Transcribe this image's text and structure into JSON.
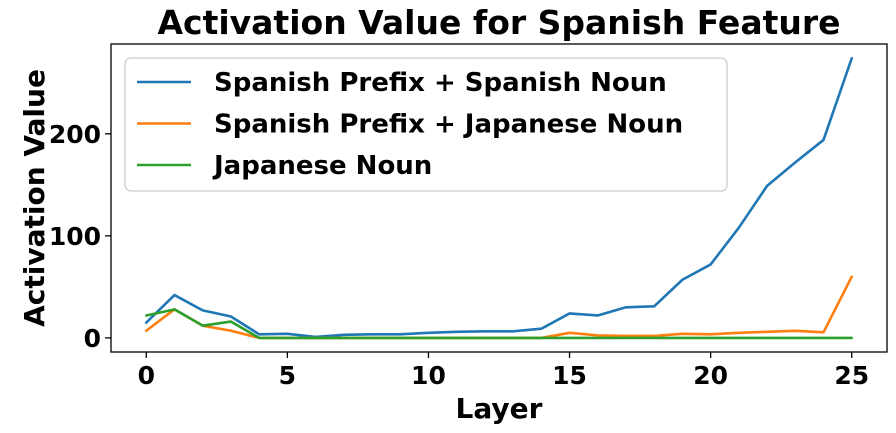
{
  "chart_data": {
    "type": "line",
    "title": "Activation Value for Spanish Feature",
    "xlabel": "Layer",
    "ylabel": "Activation Value",
    "xlim": [
      -1.25,
      26.25
    ],
    "ylim": [
      -13.8,
      288
    ],
    "xticks": [
      0,
      5,
      10,
      15,
      20,
      25
    ],
    "yticks": [
      0,
      100,
      200
    ],
    "grid": false,
    "legend_position": "upper-left",
    "x": [
      0,
      1,
      2,
      3,
      4,
      5,
      6,
      7,
      8,
      9,
      10,
      11,
      12,
      13,
      14,
      15,
      16,
      17,
      18,
      19,
      20,
      21,
      22,
      23,
      24,
      25
    ],
    "series": [
      {
        "name": "Spanish Prefix + Spanish Noun",
        "color": "#1f77b4",
        "values": [
          15,
          42,
          27,
          21,
          3.5,
          4,
          1,
          3,
          3.5,
          3.5,
          5,
          6,
          6.5,
          6.5,
          9,
          24,
          22,
          30,
          31,
          57,
          72,
          108,
          149,
          172,
          194,
          274
        ]
      },
      {
        "name": "Spanish Prefix + Japanese Noun",
        "color": "#ff7f0e",
        "values": [
          7,
          28,
          12,
          7,
          0,
          0,
          0,
          0,
          0,
          0,
          0,
          0,
          0,
          0,
          0,
          5,
          2.5,
          2,
          2,
          4,
          3.5,
          5,
          6,
          7,
          5.5,
          60
        ]
      },
      {
        "name": "Japanese Noun",
        "color": "#2ca02c",
        "values": [
          22,
          28,
          12,
          16,
          0,
          0,
          0,
          0,
          0,
          0,
          0,
          0,
          0,
          0,
          0,
          0,
          0,
          0,
          0,
          0,
          0,
          0,
          0,
          0,
          0,
          0
        ]
      }
    ]
  }
}
